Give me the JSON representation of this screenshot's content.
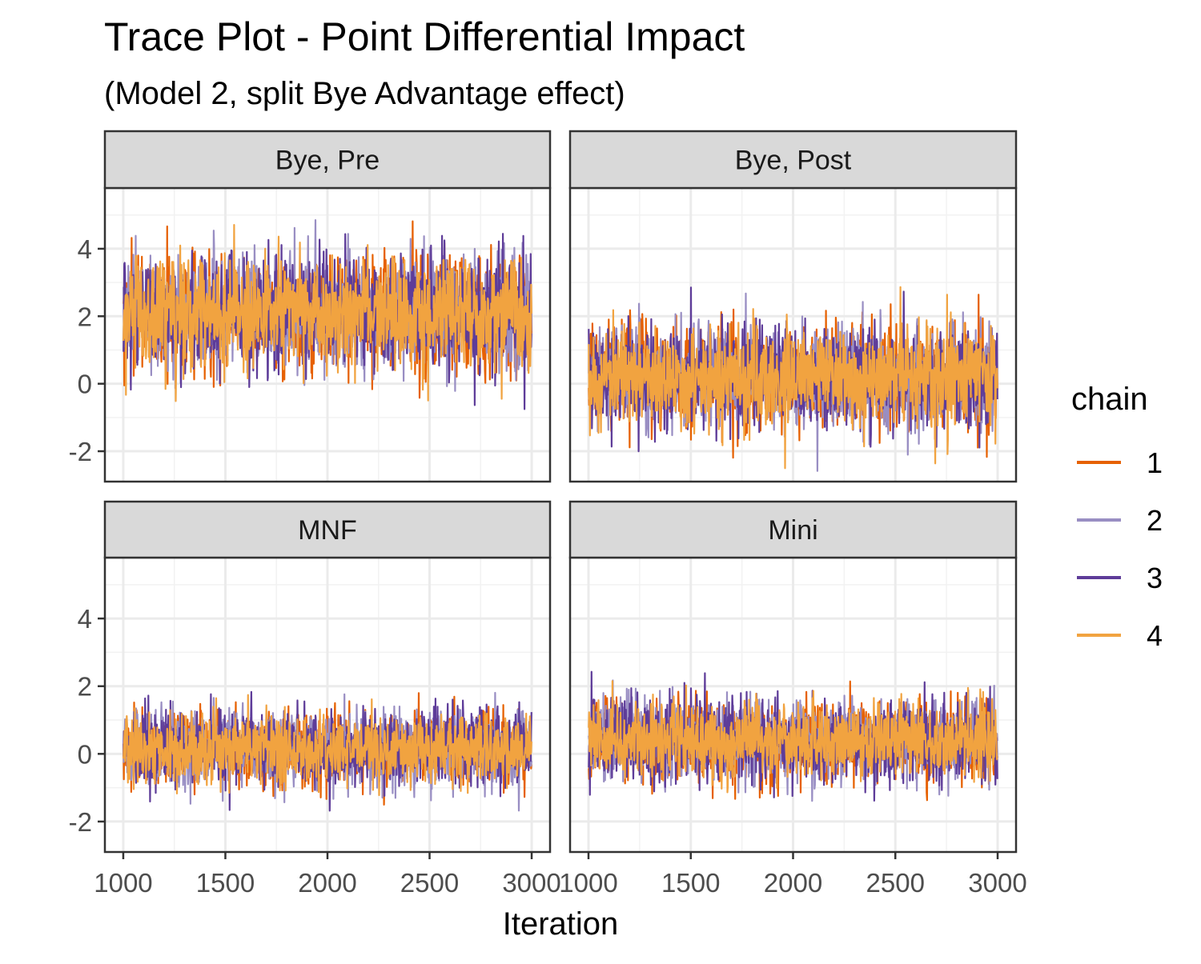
{
  "chart_data": {
    "type": "line",
    "title": "Trace Plot - Point Differential Impact",
    "subtitle": "(Model 2, split Bye Advantage effect)",
    "xlabel": "Iteration",
    "ylabel": "",
    "x_range": [
      1001,
      3000
    ],
    "xlim": [
      910,
      3090
    ],
    "ylim": [
      -2.9,
      5.8
    ],
    "x_ticks": [
      1000,
      1500,
      2000,
      2500,
      3000
    ],
    "y_ticks": [
      -2,
      0,
      2,
      4
    ],
    "grid": true,
    "legend": {
      "title": "chain",
      "position": "right",
      "entries": [
        "1",
        "2",
        "3",
        "4"
      ]
    },
    "series_colors": {
      "1": "#e66101",
      "2": "#998ec3",
      "3": "#5e3c99",
      "4": "#f1a340"
    },
    "panels": [
      {
        "name": "Bye, Pre",
        "mean": 2.1,
        "sd": 0.85,
        "min_observed": -0.9,
        "max_observed": 5.4
      },
      {
        "name": "Bye, Post",
        "mean": 0.2,
        "sd": 0.75,
        "min_observed": -2.6,
        "max_observed": 3.0
      },
      {
        "name": "MNF",
        "mean": 0.15,
        "sd": 0.55,
        "min_observed": -2.0,
        "max_observed": 2.2
      },
      {
        "name": "Mini",
        "mean": 0.4,
        "sd": 0.6,
        "min_observed": -1.5,
        "max_observed": 2.7
      }
    ]
  }
}
